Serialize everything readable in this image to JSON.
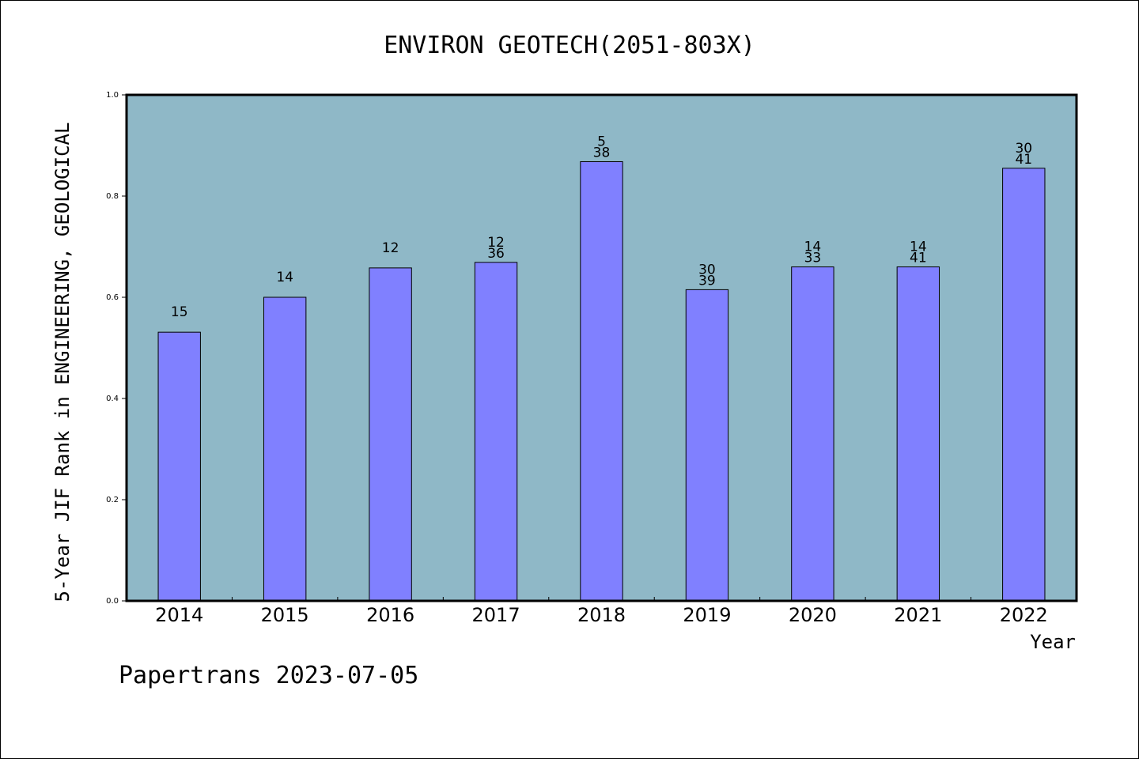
{
  "chart_data": {
    "type": "bar",
    "title": "ENVIRON GEOTECH(2051-803X)",
    "xlabel": "Year",
    "ylabel": "5-Year JIF Rank in ENGINEERING, GEOLOGICAL",
    "ylim": [
      0.0,
      1.0
    ],
    "yticks": [
      "0.0",
      "0.2",
      "0.4",
      "0.6",
      "0.8",
      "1.0"
    ],
    "grid": false,
    "categories": [
      "2014",
      "2015",
      "2016",
      "2017",
      "2018",
      "2019",
      "2020",
      "2021",
      "2022"
    ],
    "values": [
      0.531,
      0.6,
      0.658,
      0.669,
      0.868,
      0.615,
      0.66,
      0.66,
      0.855
    ],
    "bar_labels": [
      [
        "15"
      ],
      [
        "14"
      ],
      [
        "12"
      ],
      [
        "12",
        "36"
      ],
      [
        "5",
        "38"
      ],
      [
        "30",
        "39"
      ],
      [
        "14",
        "33"
      ],
      [
        "14",
        "41"
      ],
      [
        "30",
        "41"
      ]
    ],
    "colors": {
      "plot_background": "#8FB8C7",
      "bar_fill": "#8080FF",
      "bar_stroke": "#000000"
    }
  },
  "footer": {
    "credit": "Papertrans 2023-07-05"
  }
}
